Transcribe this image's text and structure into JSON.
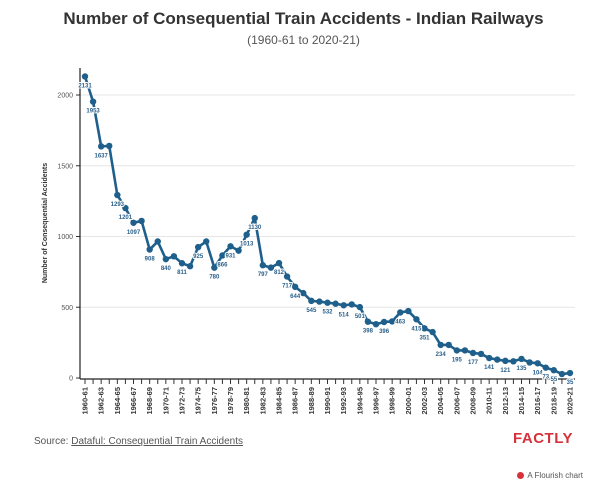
{
  "header": {
    "title": "Number of Consequential Train Accidents - Indian Railways",
    "subtitle": "(1960-61 to 2020-21)"
  },
  "footer": {
    "source_prefix": "Source: ",
    "source_link": "Dataful: Consequential Train Accidents",
    "brand": "FACTLY",
    "flourish": "A Flourish chart"
  },
  "colors": {
    "line": "#1f5f8b",
    "brand": "#d6323b"
  },
  "chart_data": {
    "type": "line",
    "title": "Number of Consequential Train Accidents - Indian Railways",
    "subtitle": "(1960-61 to 2020-21)",
    "xlabel": "",
    "ylabel": "Number of Consequential Accidents",
    "ylim": [
      0,
      2200
    ],
    "yticks": [
      0,
      500,
      1000,
      1500,
      2000
    ],
    "grid": true,
    "legend": "none",
    "x": [
      "1960-61",
      "1961-62",
      "1962-63",
      "1963-64",
      "1964-65",
      "1965-66",
      "1966-67",
      "1967-68",
      "1968-69",
      "1969-70",
      "1970-71",
      "1971-72",
      "1972-73",
      "1973-74",
      "1974-75",
      "1975-76",
      "1976-77",
      "1977-78",
      "1978-79",
      "1979-80",
      "1980-81",
      "1981-82",
      "1982-83",
      "1983-84",
      "1984-85",
      "1985-86",
      "1986-87",
      "1987-88",
      "1988-89",
      "1989-90",
      "1990-91",
      "1991-92",
      "1992-93",
      "1993-94",
      "1994-95",
      "1995-96",
      "1996-97",
      "1997-98",
      "1998-99",
      "1999-00",
      "2000-01",
      "2001-02",
      "2002-03",
      "2003-04",
      "2004-05",
      "2005-06",
      "2006-07",
      "2007-08",
      "2008-09",
      "2009-10",
      "2010-11",
      "2011-12",
      "2012-13",
      "2013-14",
      "2014-15",
      "2015-16",
      "2016-17",
      "2017-18",
      "2018-19",
      "2019-20",
      "2020-21"
    ],
    "xtick_labels": [
      "1960-61",
      "1962-63",
      "1964-65",
      "1966-67",
      "1968-69",
      "1970-71",
      "1972-73",
      "1974-75",
      "1976-77",
      "1978-79",
      "1980-81",
      "1982-83",
      "1984-85",
      "1986-87",
      "1988-89",
      "1990-91",
      "1992-93",
      "1994-95",
      "1996-97",
      "1998-99",
      "2000-01",
      "2002-03",
      "2004-05",
      "2006-07",
      "2008-09",
      "2010-11",
      "2012-13",
      "2014-15",
      "2016-17",
      "2018-19",
      "2020-21"
    ],
    "series": [
      {
        "name": "Consequential Accidents",
        "values": [
          2131,
          1953,
          1637,
          1640,
          1293,
          1201,
          1097,
          1110,
          908,
          965,
          840,
          860,
          811,
          790,
          925,
          965,
          780,
          866,
          931,
          900,
          1013,
          1130,
          797,
          780,
          812,
          717,
          644,
          600,
          545,
          540,
          532,
          525,
          514,
          520,
          501,
          398,
          380,
          396,
          400,
          463,
          473,
          415,
          351,
          325,
          234,
          234,
          195,
          195,
          177,
          170,
          141,
          130,
          121,
          118,
          135,
          110,
          104,
          73,
          55,
          28,
          35
        ]
      }
    ],
    "data_labels": [
      {
        "x": "1960-61",
        "label": "2131"
      },
      {
        "x": "1961-62",
        "label": "1953"
      },
      {
        "x": "1962-63",
        "label": "1637"
      },
      {
        "x": "1964-65",
        "label": "1293"
      },
      {
        "x": "1965-66",
        "label": "1201"
      },
      {
        "x": "1966-67",
        "label": "1097"
      },
      {
        "x": "1968-69",
        "label": "908"
      },
      {
        "x": "1970-71",
        "label": "840"
      },
      {
        "x": "1972-73",
        "label": "811"
      },
      {
        "x": "1974-75",
        "label": "925"
      },
      {
        "x": "1976-77",
        "label": "780"
      },
      {
        "x": "1977-78",
        "label": "866"
      },
      {
        "x": "1978-79",
        "label": "931"
      },
      {
        "x": "1980-81",
        "label": "1013"
      },
      {
        "x": "1981-82",
        "label": "1130"
      },
      {
        "x": "1982-83",
        "label": "797"
      },
      {
        "x": "1984-85",
        "label": "812"
      },
      {
        "x": "1985-86",
        "label": "717"
      },
      {
        "x": "1986-87",
        "label": "644"
      },
      {
        "x": "1988-89",
        "label": "545"
      },
      {
        "x": "1990-91",
        "label": "532"
      },
      {
        "x": "1992-93",
        "label": "514"
      },
      {
        "x": "1994-95",
        "label": "501"
      },
      {
        "x": "1995-96",
        "label": "398"
      },
      {
        "x": "1997-98",
        "label": "396"
      },
      {
        "x": "1999-00",
        "label": "463"
      },
      {
        "x": "2001-02",
        "label": "415"
      },
      {
        "x": "2002-03",
        "label": "351"
      },
      {
        "x": "2004-05",
        "label": "234"
      },
      {
        "x": "2006-07",
        "label": "195"
      },
      {
        "x": "2008-09",
        "label": "177"
      },
      {
        "x": "2010-11",
        "label": "141"
      },
      {
        "x": "2012-13",
        "label": "121"
      },
      {
        "x": "2014-15",
        "label": "135"
      },
      {
        "x": "2016-17",
        "label": "104"
      },
      {
        "x": "2017-18",
        "label": "73"
      },
      {
        "x": "2018-19",
        "label": "55"
      },
      {
        "x": "2020-21",
        "label": "35"
      }
    ]
  }
}
